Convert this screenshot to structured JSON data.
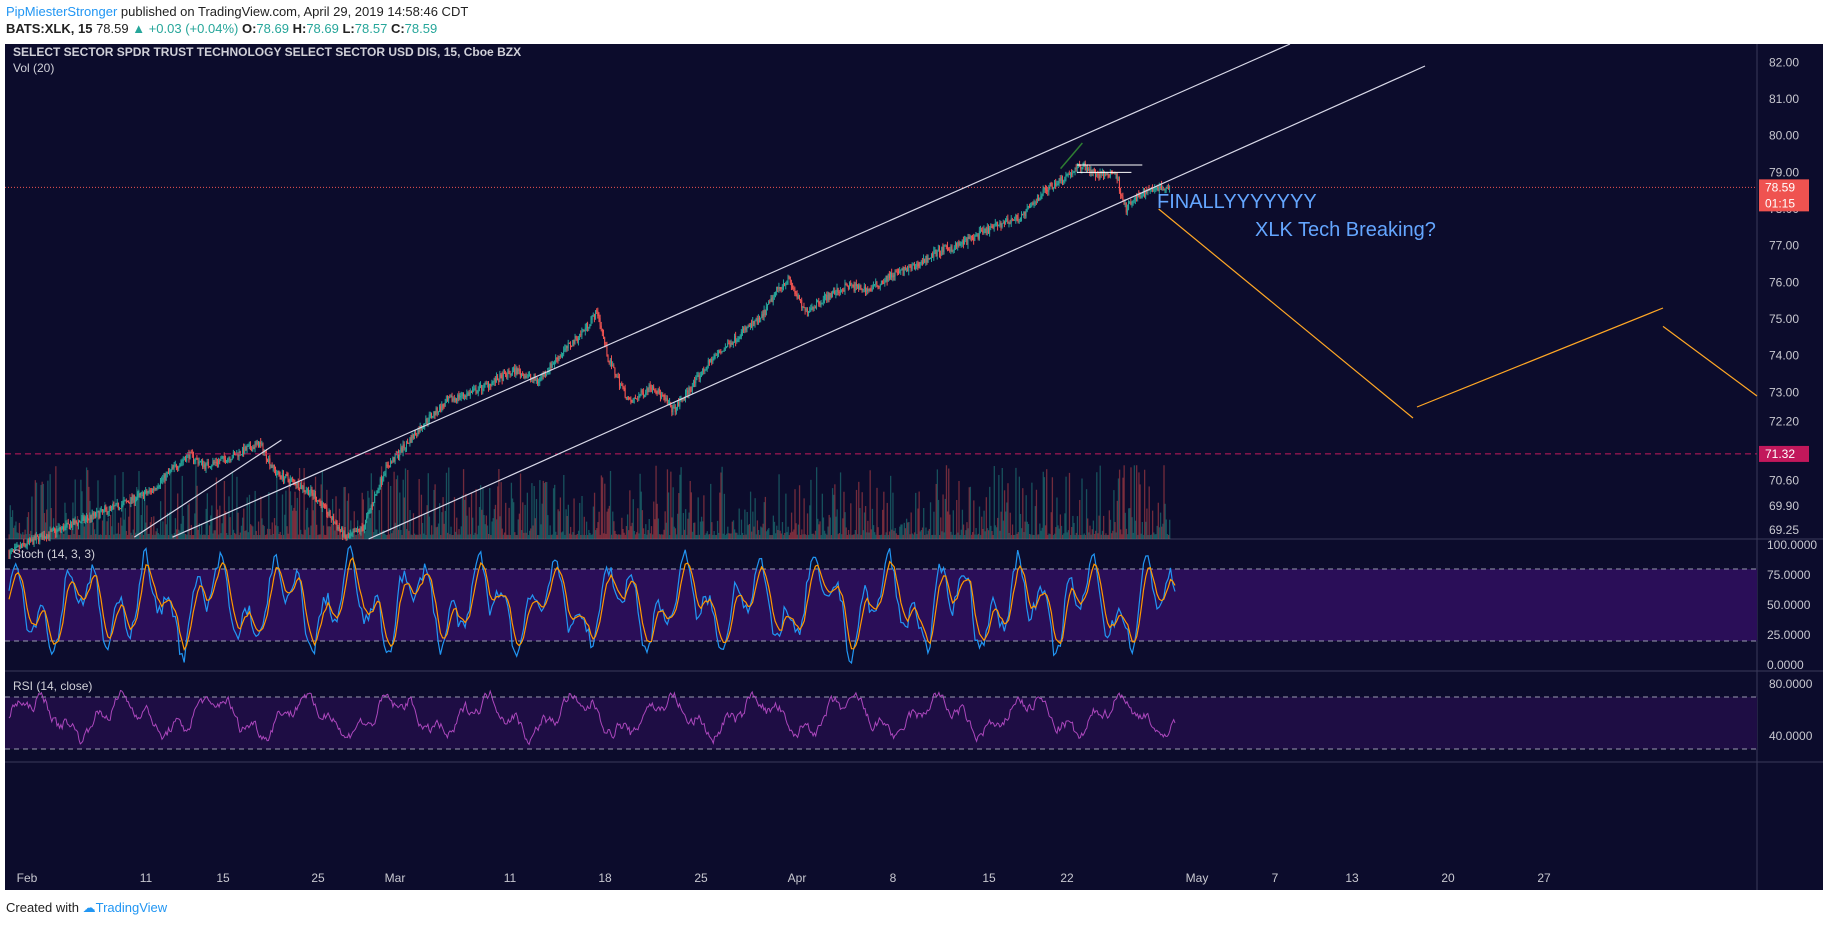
{
  "header": {
    "user": "PipMiesterStronger",
    "published": "published on TradingView.com, April 29, 2019 14:58:46 CDT",
    "symbol": "BATS:XLK, 15",
    "last": "78.59",
    "change": "▲ +0.03 (+0.04%)",
    "o_label": "O:",
    "o_val": "78.69",
    "h_label": "H:",
    "h_val": "78.69",
    "l_label": "L:",
    "l_val": "78.57",
    "c_label": "C:",
    "c_val": "78.59"
  },
  "footer": {
    "created": "Created with",
    "brand": "TradingView"
  },
  "colors": {
    "background": "#0c0c2c",
    "up": "#26a69a",
    "down": "#ef5350",
    "price_line": "#ef5350",
    "stoch_k": "#2196f3",
    "stoch_d": "#ff9800",
    "rsi": "#ab47bc",
    "channel": "#d8d8e8",
    "projection": "#ffa726",
    "level": "#c2185b",
    "annotation": "#64a6ff"
  },
  "chart_data": [
    {
      "type": "candlestick",
      "title": "SELECT SECTOR SPDR TRUST TECHNOLOGY SELECT SECTOR USD DIS, 15, Cboe BZX",
      "volume_label": "Vol (20)",
      "ylim": [
        69.0,
        82.5
      ],
      "y_ticks": [
        "82.00",
        "81.00",
        "80.00",
        "79.00",
        "78.00",
        "77.00",
        "76.00",
        "75.00",
        "74.00",
        "73.00",
        "72.20",
        "70.60",
        "69.90",
        "69.25"
      ],
      "x_ticks": [
        "Feb",
        "11",
        "15",
        "25",
        "Mar",
        "11",
        "18",
        "25",
        "Apr",
        "8",
        "15",
        "22",
        "May",
        "7",
        "13",
        "20",
        "27"
      ],
      "last_price": "78.59",
      "countdown": "01:15",
      "level_price": "71.32",
      "price_path": [
        [
          0.0,
          68.6
        ],
        [
          0.5,
          69.0
        ],
        [
          1.0,
          69.3
        ],
        [
          1.5,
          69.6
        ],
        [
          2.0,
          69.9
        ],
        [
          2.6,
          70.3
        ],
        [
          3.0,
          70.9
        ],
        [
          3.3,
          71.3
        ],
        [
          3.6,
          71.0
        ],
        [
          4.0,
          71.2
        ],
        [
          4.3,
          71.4
        ],
        [
          4.6,
          71.6
        ],
        [
          4.9,
          70.8
        ],
        [
          5.3,
          70.5
        ],
        [
          5.6,
          70.2
        ],
        [
          5.9,
          69.6
        ],
        [
          6.2,
          69.0
        ],
        [
          6.5,
          69.3
        ],
        [
          6.9,
          70.9
        ],
        [
          7.3,
          71.6
        ],
        [
          7.7,
          72.3
        ],
        [
          8.1,
          72.8
        ],
        [
          8.5,
          73.0
        ],
        [
          8.9,
          73.3
        ],
        [
          9.3,
          73.6
        ],
        [
          9.7,
          73.3
        ],
        [
          10.1,
          74.0
        ],
        [
          10.5,
          74.6
        ],
        [
          10.8,
          75.2
        ],
        [
          11.0,
          73.9
        ],
        [
          11.4,
          72.7
        ],
        [
          11.8,
          73.2
        ],
        [
          12.2,
          72.5
        ],
        [
          12.6,
          73.3
        ],
        [
          12.9,
          73.9
        ],
        [
          13.2,
          74.3
        ],
        [
          13.5,
          74.7
        ],
        [
          13.8,
          75.0
        ],
        [
          14.1,
          75.8
        ],
        [
          14.3,
          76.1
        ],
        [
          14.6,
          75.2
        ],
        [
          15.0,
          75.6
        ],
        [
          15.4,
          75.9
        ],
        [
          15.8,
          75.8
        ],
        [
          16.2,
          76.2
        ],
        [
          16.6,
          76.4
        ],
        [
          17.0,
          76.8
        ],
        [
          17.4,
          77.0
        ],
        [
          17.8,
          77.3
        ],
        [
          18.2,
          77.6
        ],
        [
          18.6,
          77.8
        ],
        [
          19.0,
          78.5
        ],
        [
          19.4,
          78.9
        ],
        [
          19.7,
          79.2
        ],
        [
          20.0,
          78.9
        ],
        [
          20.3,
          79.0
        ],
        [
          20.5,
          78.0
        ],
        [
          20.7,
          78.3
        ],
        [
          21.0,
          78.6
        ],
        [
          21.3,
          78.59
        ]
      ]
    },
    {
      "type": "line",
      "title": "Stoch (14, 3, 3)",
      "ylim": [
        0,
        100
      ],
      "y_ticks": [
        "100.0000",
        "75.0000",
        "50.0000",
        "25.0000",
        "0.0000"
      ],
      "bands": [
        20,
        80
      ]
    },
    {
      "type": "line",
      "title": "RSI (14, close)",
      "ylim": [
        20,
        90
      ],
      "y_ticks": [
        "80.0000",
        "40.0000"
      ],
      "bands": [
        30,
        70
      ]
    }
  ],
  "annotations": {
    "text1": "FINALLYYYYYYY",
    "text2": "XLK Tech Breaking?"
  }
}
